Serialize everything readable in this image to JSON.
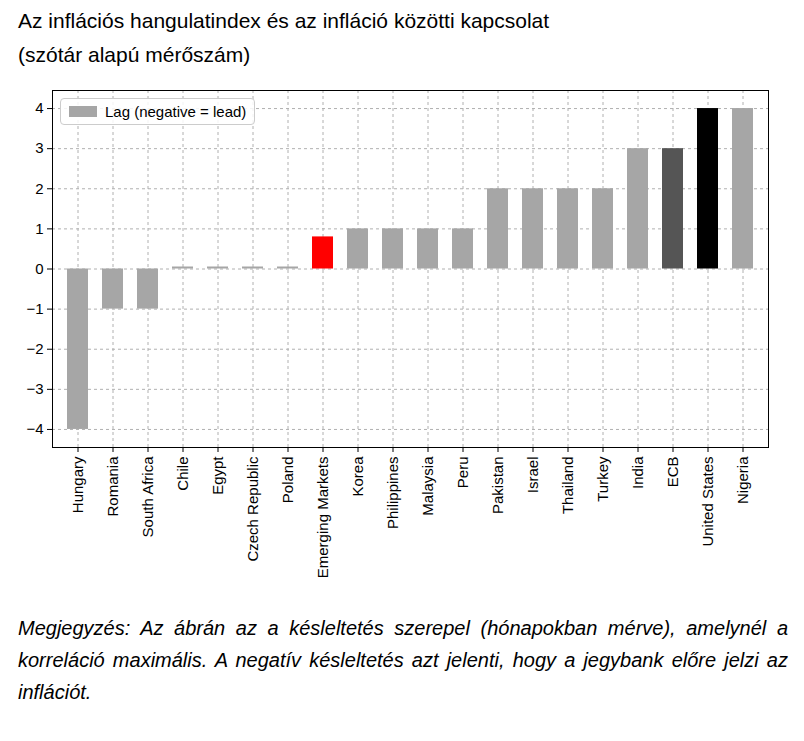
{
  "chart_data": {
    "type": "bar",
    "title": "Az inflációs hangulatindex és az infláció közötti kapcsolat",
    "subtitle": "(szótár alapú mérőszám)",
    "caption": "Megjegyzés: Az ábrán az a késleltetés szerepel (hónapokban mérve), amelynél a korreláció maximális. A negatív késleltetés azt jelenti, hogy a jegybank előre jelzi az inflációt.",
    "categories": [
      "Hungary",
      "Romania",
      "South Africa",
      "Chile",
      "Egypt",
      "Czech Republic",
      "Poland",
      "Emerging Markets",
      "Korea",
      "Philippines",
      "Malaysia",
      "Peru",
      "Pakistan",
      "Israel",
      "Thailand",
      "Turkey",
      "India",
      "ECB",
      "United States",
      "Nigeria"
    ],
    "series": [
      {
        "name": "Lag (negative = lead)",
        "color": "#a6a6a6",
        "colors": [
          "#a6a6a6",
          "#a6a6a6",
          "#a6a6a6",
          "#a6a6a6",
          "#a6a6a6",
          "#a6a6a6",
          "#a6a6a6",
          "#ff0000",
          "#a6a6a6",
          "#a6a6a6",
          "#a6a6a6",
          "#a6a6a6",
          "#a6a6a6",
          "#a6a6a6",
          "#a6a6a6",
          "#a6a6a6",
          "#a6a6a6",
          "#555555",
          "#000000",
          "#a6a6a6"
        ],
        "values": [
          -4,
          -1,
          -1,
          0.05,
          0.05,
          0.05,
          0.05,
          0.8,
          1,
          1,
          1,
          1,
          2,
          2,
          2,
          2,
          3,
          3,
          4,
          4
        ]
      }
    ],
    "ylim": [
      -4.45,
      4.45
    ],
    "yticks": [
      -4,
      -3,
      -2,
      -1,
      0,
      1,
      2,
      3,
      4
    ],
    "grid": true,
    "legend": "upper left"
  }
}
